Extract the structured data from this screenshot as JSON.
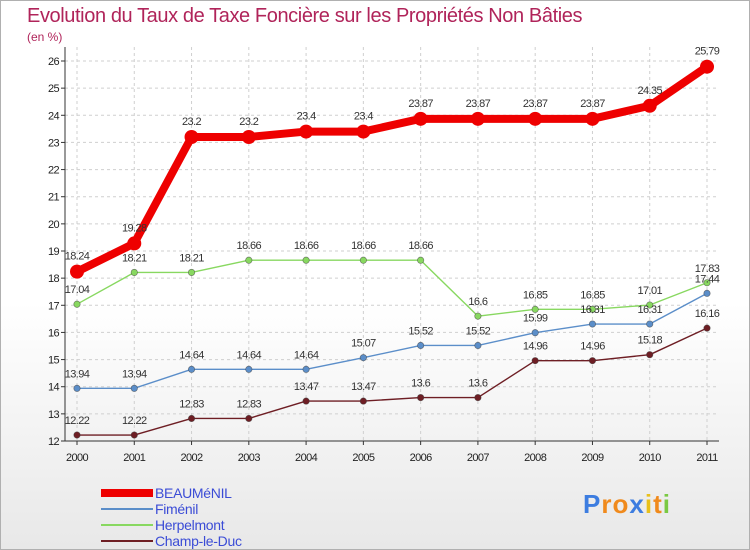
{
  "chart_data": {
    "type": "line",
    "title": "Evolution du Taux de Taxe Foncière sur les Propriétés Non Bâties",
    "ylabel": "(en %)",
    "xlabel": "",
    "categories": [
      "2000",
      "2001",
      "2002",
      "2003",
      "2004",
      "2005",
      "2006",
      "2007",
      "2008",
      "2009",
      "2010",
      "2011"
    ],
    "ylim": [
      12,
      26
    ],
    "yticks": [
      "12",
      "13",
      "14",
      "15",
      "16",
      "17",
      "18",
      "19",
      "20",
      "21",
      "22",
      "23",
      "24",
      "25",
      "26"
    ],
    "grid": true,
    "legend_position": "bottom-left",
    "series": [
      {
        "name": "BEAUMéNIL",
        "color": "#ee0000",
        "values": [
          18.24,
          19.28,
          23.2,
          23.2,
          23.4,
          23.4,
          23.87,
          23.87,
          23.87,
          23.87,
          24.35,
          25.79
        ],
        "labels": [
          "18.24",
          "19.28",
          "23.2",
          "23.2",
          "23.4",
          "23.4",
          "23.87",
          "23.87",
          "23.87",
          "23.87",
          "24.35",
          "25.79"
        ]
      },
      {
        "name": "Fiménil",
        "color": "#5b8ec9",
        "values": [
          13.94,
          13.94,
          14.64,
          14.64,
          14.64,
          15.07,
          15.52,
          15.52,
          15.99,
          16.31,
          16.31,
          17.44
        ],
        "labels": [
          "13.94",
          "13.94",
          "14.64",
          "14.64",
          "14.64",
          "15.07",
          "15.52",
          "15.52",
          "15.99",
          "16.31",
          "16.31",
          "17.44"
        ]
      },
      {
        "name": "Herpelmont",
        "color": "#88d860",
        "values": [
          17.04,
          18.21,
          18.21,
          18.66,
          18.66,
          18.66,
          18.66,
          16.6,
          16.85,
          16.85,
          17.01,
          17.83
        ],
        "labels": [
          "17.04",
          "18.21",
          "18.21",
          "18.66",
          "18.66",
          "18.66",
          "18.66",
          "16.6",
          "16.85",
          "16.85",
          "17.01",
          "17.83"
        ]
      },
      {
        "name": "Champ-le-Duc",
        "color": "#6e1e24",
        "values": [
          12.22,
          12.22,
          12.83,
          12.83,
          13.47,
          13.47,
          13.6,
          13.6,
          14.96,
          14.96,
          15.18,
          16.16
        ],
        "labels": [
          "12.22",
          "12.22",
          "12.83",
          "12.83",
          "13.47",
          "13.47",
          "13.6",
          "13.6",
          "14.96",
          "14.96",
          "15.18",
          "16.16"
        ]
      }
    ]
  },
  "logo": {
    "letters": [
      "P",
      "r",
      "o",
      "x",
      "i",
      "t",
      "i"
    ],
    "colors": [
      "#3d7de0",
      "#f08a1c",
      "#f08a1c",
      "#3d7de0",
      "#e8c01c",
      "#f08a1c",
      "#7ac943"
    ]
  }
}
